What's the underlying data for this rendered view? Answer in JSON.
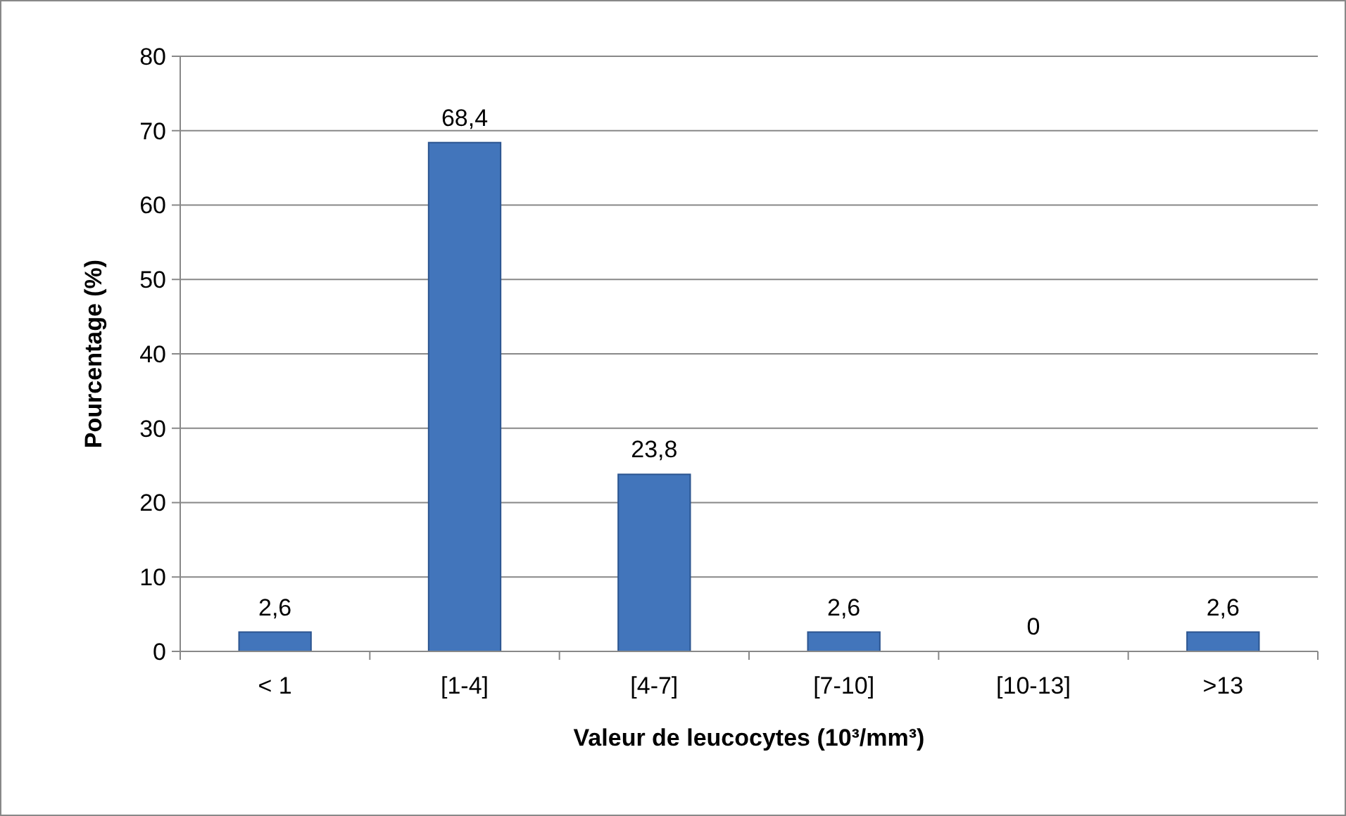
{
  "chart_data": {
    "type": "bar",
    "xlabel": "Valeur de leucocytes (10³/mm³)",
    "ylabel": "Pourcentage (%)",
    "categories": [
      "< 1",
      "[1-4]",
      "[4-7]",
      "[7-10]",
      "[10-13]",
      ">13"
    ],
    "values": [
      2.6,
      68.4,
      23.8,
      2.6,
      0,
      2.6
    ],
    "value_labels": [
      "2,6",
      "68,4",
      "23,8",
      "2,6",
      "0",
      "2,6"
    ],
    "color": "#4275bb",
    "ylim": [
      0,
      80
    ],
    "yticks": [
      0,
      10,
      20,
      30,
      40,
      50,
      60,
      70,
      80
    ],
    "grid": "y"
  }
}
